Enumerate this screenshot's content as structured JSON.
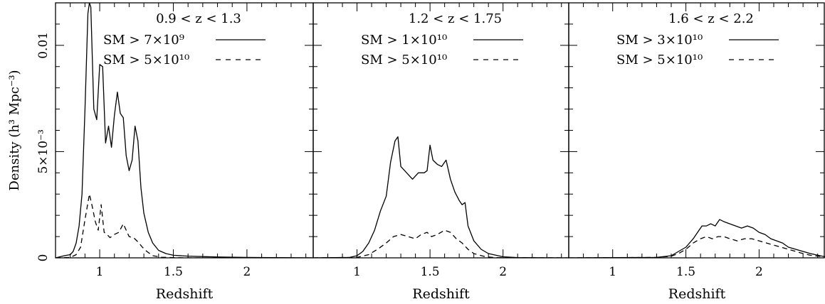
{
  "chart_data": [
    {
      "type": "line",
      "range_label": "0.9 < z < 1.3",
      "xlabel": "Redshift",
      "ylabel": "Density (h³ Mpc⁻³)",
      "xlim": [
        0.7,
        2.45
      ],
      "ylim": [
        0,
        0.012
      ],
      "xticks": [
        1,
        1.5,
        2
      ],
      "xtick_labels": [
        "1",
        "1.5",
        "2"
      ],
      "yticks": [
        0,
        0.005,
        0.01
      ],
      "ytick_labels": [
        "0",
        "5×10⁻³",
        "0.01"
      ],
      "series": [
        {
          "name": "SM > 7×10⁹",
          "style": "solid",
          "x": [
            0.7,
            0.76,
            0.8,
            0.82,
            0.84,
            0.86,
            0.88,
            0.9,
            0.92,
            0.93,
            0.94,
            0.96,
            0.98,
            1.0,
            1.02,
            1.04,
            1.06,
            1.08,
            1.1,
            1.12,
            1.14,
            1.16,
            1.18,
            1.2,
            1.22,
            1.24,
            1.26,
            1.28,
            1.3,
            1.33,
            1.36,
            1.4,
            1.45,
            1.5,
            1.6,
            1.8,
            2.0,
            2.2,
            2.45
          ],
          "y": [
            0,
            0.0001,
            0.00015,
            0.0003,
            0.0007,
            0.0015,
            0.003,
            0.007,
            0.0115,
            0.012,
            0.0118,
            0.007,
            0.0065,
            0.0091,
            0.009,
            0.0054,
            0.0062,
            0.0052,
            0.0067,
            0.0078,
            0.0068,
            0.0066,
            0.0048,
            0.0041,
            0.0046,
            0.0062,
            0.0055,
            0.0033,
            0.0021,
            0.0012,
            0.0007,
            0.00035,
            0.0002,
            0.00012,
            8e-05,
            4e-05,
            2e-05,
            1e-05,
            0
          ]
        },
        {
          "name": "SM > 5×10¹⁰",
          "style": "dashed",
          "x": [
            0.7,
            0.8,
            0.84,
            0.87,
            0.9,
            0.93,
            0.95,
            0.97,
            0.99,
            1.01,
            1.03,
            1.05,
            1.07,
            1.1,
            1.13,
            1.16,
            1.18,
            1.2,
            1.23,
            1.26,
            1.29,
            1.32,
            1.36,
            1.42,
            1.5,
            1.6,
            1.8,
            2.0,
            2.45
          ],
          "y": [
            0,
            2e-05,
            0.00015,
            0.0005,
            0.0018,
            0.003,
            0.0024,
            0.0017,
            0.0013,
            0.0025,
            0.0012,
            0.0011,
            0.00095,
            0.0011,
            0.0012,
            0.0016,
            0.0013,
            0.001,
            0.00095,
            0.00075,
            0.0005,
            0.0003,
            0.0001,
            3e-05,
            1e-05,
            0,
            0,
            0,
            0
          ]
        }
      ]
    },
    {
      "type": "line",
      "range_label": "1.2 < z < 1.75",
      "xlabel": "Redshift",
      "xlim": [
        0.7,
        2.45
      ],
      "ylim": [
        0,
        0.012
      ],
      "xticks": [
        1,
        1.5,
        2
      ],
      "xtick_labels": [
        "1",
        "1.5",
        "2"
      ],
      "series": [
        {
          "name": "SM > 1×10¹⁰",
          "style": "solid",
          "x": [
            0.7,
            0.95,
            1.0,
            1.04,
            1.08,
            1.12,
            1.16,
            1.2,
            1.23,
            1.26,
            1.28,
            1.3,
            1.34,
            1.38,
            1.42,
            1.46,
            1.48,
            1.5,
            1.52,
            1.55,
            1.58,
            1.61,
            1.64,
            1.67,
            1.7,
            1.72,
            1.74,
            1.76,
            1.8,
            1.85,
            1.9,
            2.0,
            2.1,
            2.45
          ],
          "y": [
            0,
            2e-05,
            0.0001,
            0.0003,
            0.0007,
            0.0013,
            0.0022,
            0.0029,
            0.0045,
            0.0055,
            0.0057,
            0.0043,
            0.004,
            0.0037,
            0.004,
            0.004,
            0.0041,
            0.0053,
            0.0046,
            0.0044,
            0.0043,
            0.0046,
            0.0037,
            0.0031,
            0.0027,
            0.0025,
            0.0026,
            0.0015,
            0.0008,
            0.0004,
            0.0002,
            5e-05,
            1e-05,
            0
          ]
        },
        {
          "name": "SM > 5×10¹⁰",
          "style": "dashed",
          "x": [
            0.7,
            1.0,
            1.08,
            1.14,
            1.2,
            1.25,
            1.3,
            1.35,
            1.4,
            1.44,
            1.48,
            1.51,
            1.55,
            1.6,
            1.64,
            1.68,
            1.72,
            1.76,
            1.8,
            1.88,
            1.95,
            2.45
          ],
          "y": [
            0,
            2e-05,
            0.00015,
            0.0004,
            0.0007,
            0.001,
            0.0011,
            0.001,
            0.0009,
            0.0011,
            0.0012,
            0.001,
            0.0011,
            0.0013,
            0.0012,
            0.0009,
            0.0007,
            0.0004,
            0.0002,
            5e-05,
            1e-05,
            0
          ]
        }
      ]
    },
    {
      "type": "line",
      "range_label": "1.6 < z < 2.2",
      "xlabel": "Redshift",
      "xlim": [
        0.7,
        2.45
      ],
      "ylim": [
        0,
        0.012
      ],
      "xticks": [
        1,
        1.5,
        2
      ],
      "xtick_labels": [
        "1",
        "1.5",
        "2"
      ],
      "series": [
        {
          "name": "SM > 3×10¹⁰",
          "style": "solid",
          "x": [
            0.7,
            1.3,
            1.4,
            1.45,
            1.5,
            1.55,
            1.58,
            1.61,
            1.64,
            1.67,
            1.7,
            1.73,
            1.76,
            1.8,
            1.84,
            1.88,
            1.92,
            1.96,
            2.0,
            2.04,
            2.08,
            2.12,
            2.16,
            2.2,
            2.25,
            2.3,
            2.35,
            2.45
          ],
          "y": [
            0,
            2e-05,
            0.0001,
            0.0003,
            0.0005,
            0.0009,
            0.0012,
            0.0015,
            0.0015,
            0.0016,
            0.0015,
            0.0018,
            0.0017,
            0.0016,
            0.0015,
            0.0014,
            0.0015,
            0.0014,
            0.0012,
            0.0011,
            0.0009,
            0.0008,
            0.0007,
            0.0005,
            0.0004,
            0.0003,
            0.0002,
            5e-05
          ]
        },
        {
          "name": "SM > 5×10¹⁰",
          "style": "dashed",
          "x": [
            0.7,
            1.3,
            1.4,
            1.45,
            1.5,
            1.55,
            1.6,
            1.64,
            1.68,
            1.72,
            1.76,
            1.8,
            1.85,
            1.9,
            1.95,
            2.0,
            2.05,
            2.1,
            2.15,
            2.2,
            2.25,
            2.3,
            2.35,
            2.45
          ],
          "y": [
            0,
            2e-05,
            8e-05,
            0.0002,
            0.0004,
            0.0007,
            0.0009,
            0.001,
            0.0009,
            0.001,
            0.001,
            0.0009,
            0.0008,
            0.0009,
            0.0009,
            0.0008,
            0.0007,
            0.0006,
            0.0005,
            0.0004,
            0.0003,
            0.0002,
            0.00012,
            4e-05
          ]
        }
      ]
    }
  ]
}
